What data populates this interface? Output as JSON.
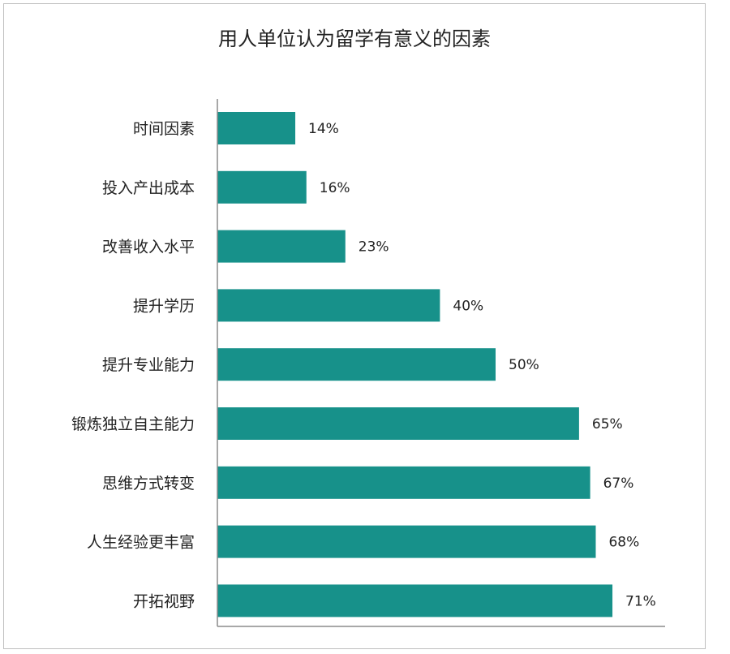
{
  "chart_data": {
    "type": "bar",
    "orientation": "horizontal",
    "title": "用人单位认为留学有意义的因素",
    "categories": [
      "时间因素",
      "投入产出成本",
      "改善收入水平",
      "提升学历",
      "提升专业能力",
      "锻炼独立自主能力",
      "思维方式转变",
      "人生经验更丰富",
      "开拓视野"
    ],
    "values": [
      14,
      16,
      23,
      40,
      50,
      65,
      67,
      68,
      71
    ],
    "data_labels": [
      "14%",
      "16%",
      "23%",
      "40%",
      "50%",
      "65%",
      "67%",
      "68%",
      "71%"
    ],
    "xlim": [
      0,
      80
    ],
    "bar_color": "#17918a",
    "grid": false,
    "legend": "none"
  }
}
